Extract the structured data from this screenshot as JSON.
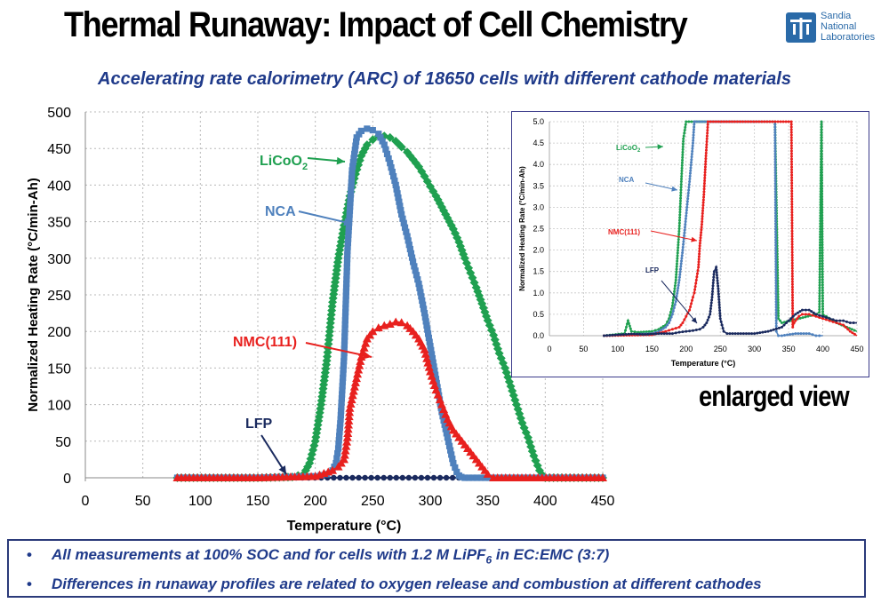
{
  "header": {
    "title": "Thermal Runaway: Impact of Cell Chemistry",
    "subtitle": "Accelerating rate calorimetry (ARC) of 18650 cells with different cathode materials"
  },
  "logo": {
    "line1": "Sandia",
    "line2": "National",
    "line3": "Laboratories",
    "color": "#2a6aa8"
  },
  "enlarged_label": "enlarged view",
  "notes": {
    "items": [
      "All measurements at 100% SOC and for cells with 1.2 M LiPF6 in EC:EMC (3:7)",
      "Differences in runaway profiles are related to oxygen release and combustion at different cathodes"
    ]
  },
  "chart_data": [
    {
      "type": "line",
      "xlabel": "Temperature (°C)",
      "ylabel": "Normalized Heating Rate (°C/min-Ah)",
      "xlim": [
        0,
        450
      ],
      "ylim": [
        0,
        500
      ],
      "xticks": [
        0,
        50,
        100,
        150,
        200,
        250,
        300,
        350,
        400,
        450
      ],
      "yticks": [
        0,
        50,
        100,
        150,
        200,
        250,
        300,
        350,
        400,
        450,
        500
      ],
      "grid": true,
      "series": [
        {
          "name": "LiCoO2",
          "color": "#1fa050",
          "marker": "diamond",
          "x": [
            80,
            150,
            180,
            190,
            195,
            200,
            205,
            210,
            215,
            220,
            225,
            230,
            235,
            240,
            245,
            250,
            255,
            260,
            265,
            270,
            275,
            280,
            285,
            290,
            295,
            300,
            305,
            310,
            315,
            320,
            325,
            330,
            335,
            340,
            345,
            350,
            355,
            360,
            365,
            370,
            375,
            380,
            385,
            390,
            395,
            398,
            400,
            450
          ],
          "y": [
            0,
            0,
            1,
            5,
            20,
            50,
            100,
            160,
            240,
            300,
            345,
            385,
            415,
            440,
            455,
            462,
            467,
            467,
            465,
            460,
            452,
            445,
            435,
            425,
            412,
            398,
            385,
            370,
            355,
            340,
            322,
            300,
            280,
            260,
            238,
            215,
            195,
            170,
            150,
            125,
            100,
            75,
            55,
            30,
            10,
            3,
            0,
            0
          ]
        },
        {
          "name": "NCA",
          "color": "#4f81bd",
          "marker": "square",
          "x": [
            80,
            150,
            200,
            210,
            215,
            218,
            220,
            222,
            225,
            228,
            232,
            236,
            240,
            245,
            250,
            255,
            260,
            265,
            270,
            275,
            280,
            285,
            290,
            295,
            300,
            305,
            310,
            315,
            320,
            323,
            325,
            327,
            330,
            450
          ],
          "y": [
            0,
            0,
            2,
            5,
            10,
            20,
            40,
            80,
            165,
            310,
            420,
            465,
            474,
            477,
            475,
            470,
            455,
            430,
            400,
            360,
            330,
            295,
            265,
            225,
            180,
            135,
            90,
            55,
            20,
            8,
            3,
            1,
            0,
            0
          ]
        },
        {
          "name": "NMC(111)",
          "color": "#e8201e",
          "marker": "triangle",
          "x": [
            80,
            150,
            200,
            215,
            220,
            225,
            228,
            230,
            235,
            240,
            245,
            250,
            255,
            260,
            265,
            270,
            275,
            280,
            285,
            290,
            295,
            300,
            305,
            310,
            315,
            320,
            325,
            330,
            335,
            340,
            345,
            350,
            355,
            450
          ],
          "y": [
            0,
            0,
            2,
            10,
            15,
            25,
            55,
            95,
            130,
            165,
            190,
            200,
            205,
            208,
            210,
            213,
            212,
            208,
            200,
            190,
            175,
            145,
            120,
            100,
            80,
            65,
            55,
            45,
            35,
            25,
            15,
            5,
            0,
            0
          ]
        },
        {
          "name": "LFP",
          "color": "#1a2a5e",
          "marker": "circle",
          "x": [
            80,
            450
          ],
          "y": [
            0,
            0
          ]
        }
      ],
      "annotations": [
        {
          "text": "LiCoO2",
          "series": "LiCoO2"
        },
        {
          "text": "NCA",
          "series": "NCA"
        },
        {
          "text": "NMC(111)",
          "series": "NMC(111)"
        },
        {
          "text": "LFP",
          "series": "LFP"
        }
      ]
    },
    {
      "type": "line",
      "xlabel": "Temperature (°C)",
      "ylabel": "Normalized Heating Rate (°C/min-Ah)",
      "xlim": [
        0,
        450
      ],
      "ylim": [
        0,
        5
      ],
      "xticks": [
        0,
        50,
        100,
        150,
        200,
        250,
        300,
        350,
        400,
        450
      ],
      "yticks": [
        "0.0",
        "0.5",
        "1.0",
        "1.5",
        "2.0",
        "2.5",
        "3.0",
        "3.5",
        "4.0",
        "4.5",
        "5.0"
      ],
      "grid": true,
      "series": [
        {
          "name": "LiCoO2",
          "color": "#1fa050",
          "x": [
            80,
            110,
            115,
            120,
            130,
            150,
            160,
            170,
            175,
            180,
            185,
            190,
            193,
            196,
            200,
            330,
            335,
            340,
            390,
            395,
            398,
            400,
            405,
            420,
            450
          ],
          "y": [
            0,
            0.05,
            0.35,
            0.1,
            0.08,
            0.1,
            0.15,
            0.25,
            0.4,
            0.7,
            1.3,
            2.5,
            3.6,
            4.6,
            5,
            5,
            0.4,
            0.3,
            0.5,
            0.55,
            5,
            0.5,
            0.45,
            0.3,
            0.1
          ]
        },
        {
          "name": "NCA",
          "color": "#4f81bd",
          "x": [
            80,
            150,
            160,
            170,
            175,
            180,
            185,
            190,
            195,
            200,
            205,
            210,
            212,
            214,
            330,
            332,
            335,
            340,
            360,
            380,
            390,
            400
          ],
          "y": [
            0,
            0.05,
            0.1,
            0.2,
            0.3,
            0.5,
            0.8,
            1.3,
            2.0,
            2.8,
            3.6,
            4.5,
            5,
            5,
            5,
            0.1,
            0,
            0,
            0.05,
            0.05,
            0,
            0
          ]
        },
        {
          "name": "NMC(111)",
          "color": "#e8201e",
          "x": [
            80,
            150,
            170,
            180,
            190,
            195,
            200,
            205,
            210,
            212,
            215,
            218,
            220,
            223,
            226,
            229,
            232,
            354,
            356,
            358,
            360,
            365,
            370,
            380,
            390,
            400,
            410,
            420,
            430,
            440,
            450
          ],
          "y": [
            0,
            0.02,
            0.1,
            0.15,
            0.2,
            0.3,
            0.45,
            0.6,
            0.9,
            1.0,
            1.3,
            1.6,
            2.1,
            2.6,
            3.3,
            4.2,
            5,
            5,
            0.2,
            0.3,
            0.35,
            0.45,
            0.5,
            0.5,
            0.45,
            0.4,
            0.35,
            0.3,
            0.25,
            0.1,
            0
          ]
        },
        {
          "name": "LFP",
          "color": "#1a2a5e",
          "x": [
            80,
            100,
            120,
            140,
            160,
            180,
            190,
            200,
            210,
            220,
            225,
            230,
            235,
            238,
            241,
            244,
            247,
            250,
            255,
            260,
            280,
            300,
            320,
            340,
            350,
            360,
            370,
            380,
            390,
            400,
            410,
            420,
            430,
            440,
            450
          ],
          "y": [
            0,
            0.02,
            0.04,
            0.03,
            0.05,
            0.05,
            0.08,
            0.1,
            0.12,
            0.15,
            0.2,
            0.3,
            0.5,
            0.9,
            1.5,
            1.6,
            1.1,
            0.4,
            0.1,
            0.05,
            0.05,
            0.05,
            0.1,
            0.2,
            0.35,
            0.5,
            0.6,
            0.6,
            0.5,
            0.45,
            0.4,
            0.35,
            0.35,
            0.3,
            0.3
          ]
        }
      ],
      "annotations": [
        {
          "text": "LiCoO2",
          "series": "LiCoO2"
        },
        {
          "text": "NCA",
          "series": "NCA"
        },
        {
          "text": "NMC(111)",
          "series": "NMC(111)"
        },
        {
          "text": "LFP",
          "series": "LFP"
        }
      ]
    }
  ]
}
